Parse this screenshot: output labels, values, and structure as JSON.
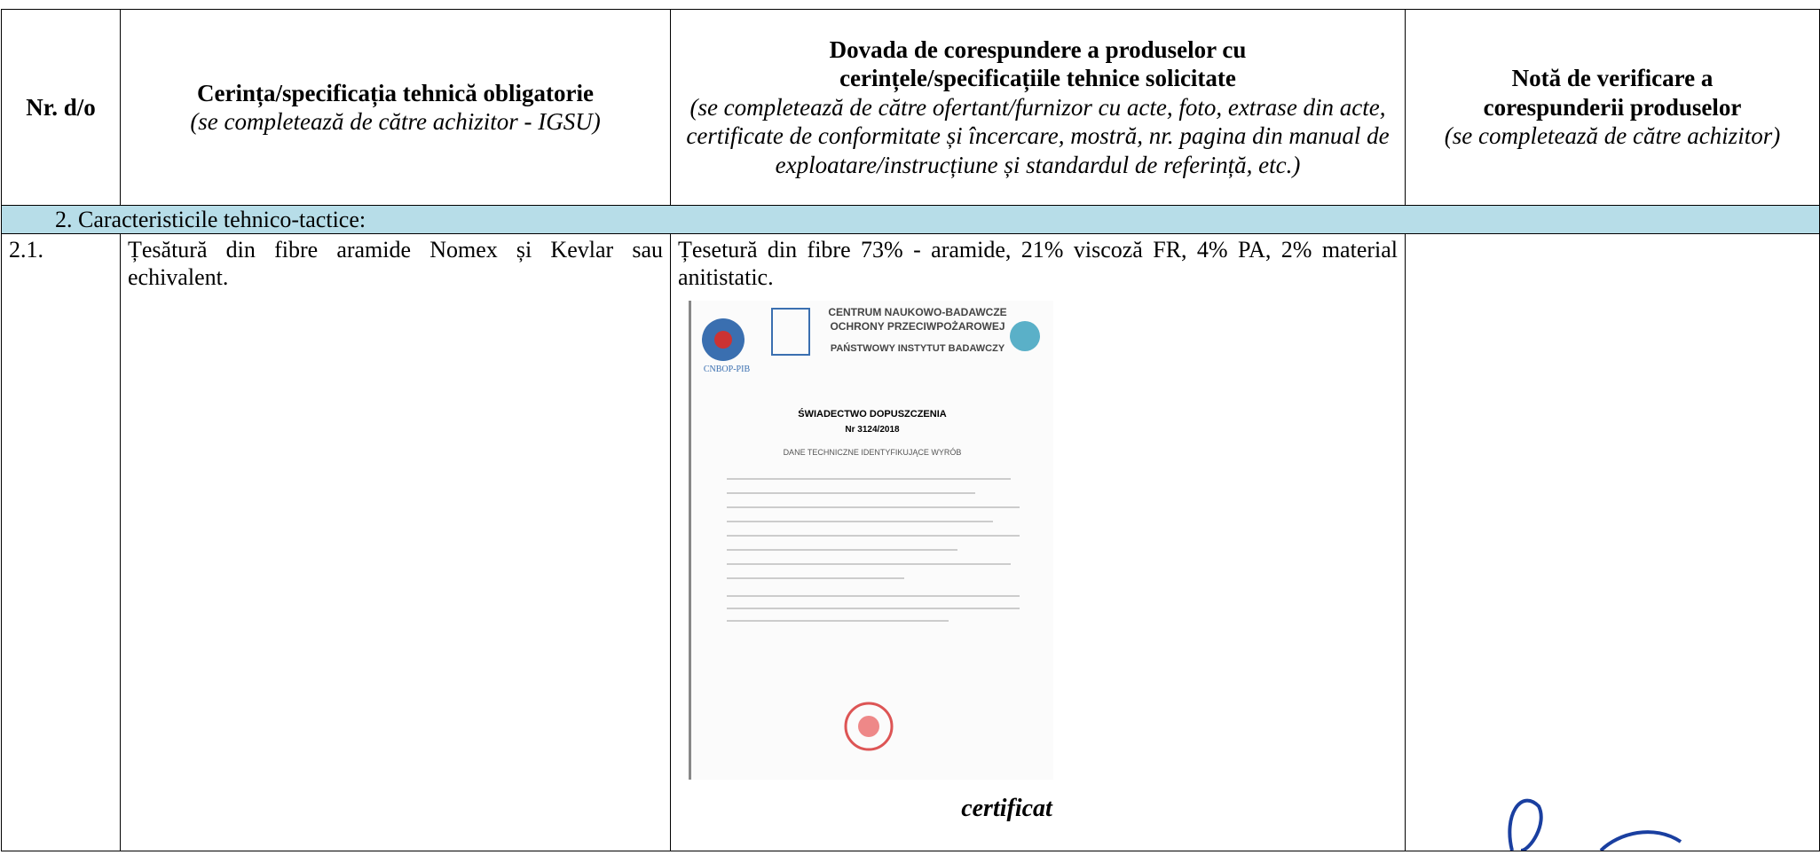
{
  "header": {
    "col1": "Nr. d/o",
    "col2": {
      "title": "Cerința/specificația tehnică obligatorie",
      "note": "(se completează de către achizitor - IGSU)"
    },
    "col3": {
      "title": "Dovada de corespundere a produselor cu cerințele/specificațiile tehnice solicitate",
      "note": "(se completează de către ofertant/furnizor cu acte, foto, extrase din acte, certificate de conformitate și încercare, mostră, nr. pagina din manual de exploatare/instrucțiune și standardul de referință, etc.)"
    },
    "col4": {
      "title": "Notă de verificare a corespunderii produselor",
      "note": "(se completează de către achizitor)"
    }
  },
  "section": "2.  Caracteristicile tehnico-tactice:",
  "rows": [
    {
      "nr": "2.1.",
      "requirement": "Țesătură din fibre aramide Nomex și Kevlar sau echivalent.",
      "evidence": "Țesetură din fibre 73% - aramide, 21% viscoză FR, 4% PA, 2% material anitistatic.",
      "certificate": {
        "org1": "CENTRUM NAUKOWO-BADAWCZE",
        "org2": "OCHRONY PRZECIWPOŻAROWEJ",
        "org3": "PAŃSTWOWY INSTYTUT BADAWCZY",
        "logo": "CNBOP-PIB",
        "title": "ŚWIADECTWO DOPUSZCZENIA",
        "number": "Nr 3124/2018",
        "subtitle": "DANE TECHNICZNE IDENTYFIKUJĄCE WYRÓB"
      },
      "caption": "certificat"
    }
  ]
}
